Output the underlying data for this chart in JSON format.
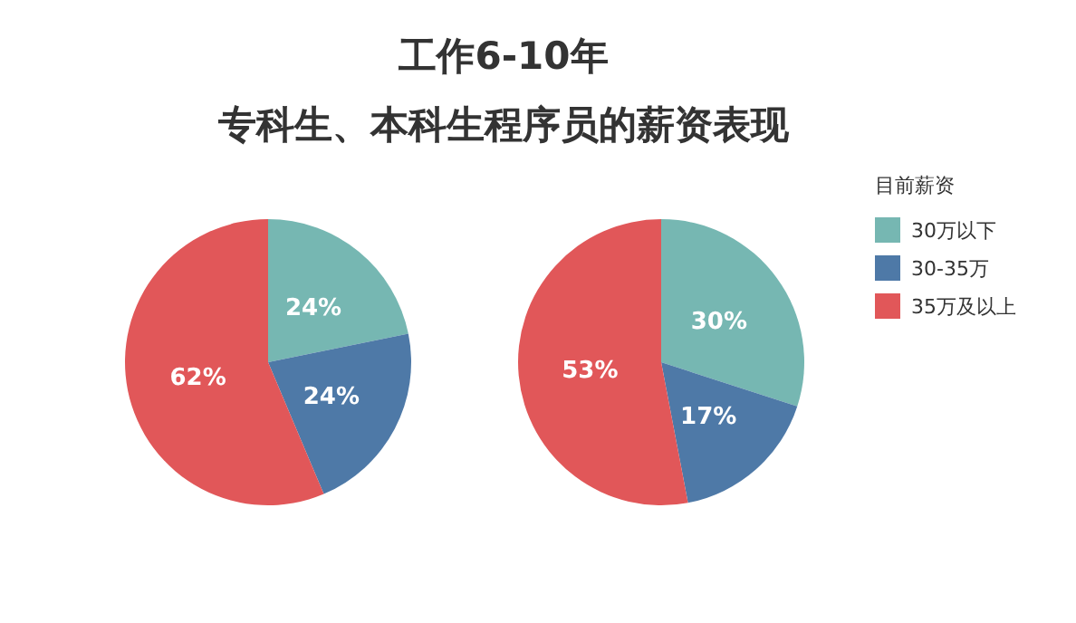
{
  "chart_data": [
    {
      "type": "pie",
      "title": "工作6-10年",
      "subtitle": "专科生、本科生程序员的薪资表现",
      "categories": [
        null,
        null,
        null
      ],
      "values": [
        24,
        24,
        62
      ],
      "value_labels": [
        "24%",
        "24%",
        "62%"
      ],
      "colors": [
        "#76b7b2",
        "#4e79a7",
        "#e15759"
      ]
    },
    {
      "type": "pie",
      "categories": [
        "30万以下",
        "30-35万",
        "35万及以上"
      ],
      "values": [
        30,
        17,
        53
      ],
      "value_labels": [
        "30%",
        "17%",
        "53%"
      ],
      "colors": [
        "#76b7b2",
        "#4e79a7",
        "#e15759"
      ],
      "legend": "right",
      "legend_title": "目前薪资"
    }
  ]
}
